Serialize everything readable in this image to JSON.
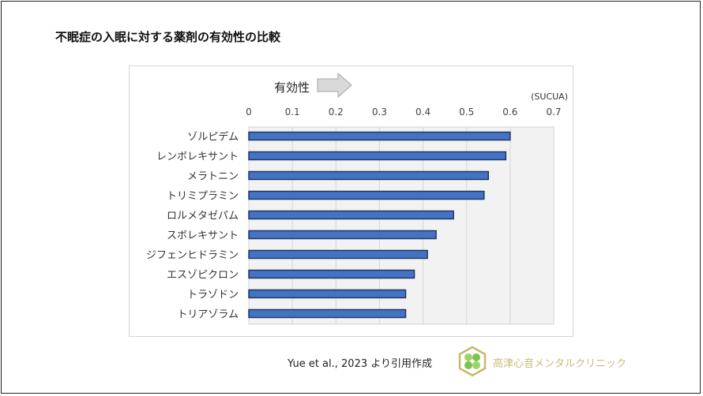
{
  "title": "不眠症の入眠に対する薬剤の有効性の比較",
  "citation": "Yue et al., 2023 より引用作成",
  "clinic_name": "高津心音メンタルクリニック",
  "logo_text": "",
  "chart_data": {
    "type": "bar",
    "orientation": "horizontal",
    "arrow_label": "有効性",
    "unit_label": "(SUCUA)",
    "categories": [
      "ゾルピデム",
      "レンボレキサント",
      "メラトニン",
      "トリミプラミン",
      "ロルメタゼパム",
      "スボレキサント",
      "ジフェンヒドラミン",
      "エスゾピクロン",
      "トラゾドン",
      "トリアゾラム"
    ],
    "values": [
      0.6,
      0.59,
      0.55,
      0.54,
      0.47,
      0.43,
      0.41,
      0.38,
      0.36,
      0.36
    ],
    "xlim": [
      0,
      0.7
    ],
    "ticks": [
      "0",
      "0.1",
      "0.2",
      "0.3",
      "0.4",
      "0.5",
      "0.6",
      "0.7"
    ],
    "axis_position": "top",
    "grid": true,
    "bar_color": "#4472c4",
    "bar_edge_color": "#1f3864",
    "plot_bg": "#f2f2f2"
  }
}
